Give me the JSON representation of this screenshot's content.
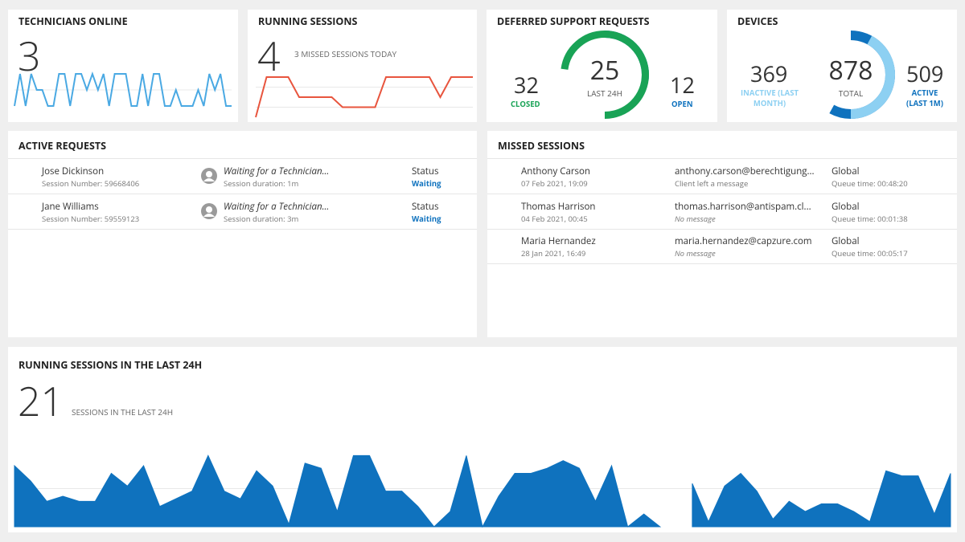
{
  "technicians_online": {
    "title": "TECHNICIANS ONLINE",
    "count": "3",
    "sparkline": {
      "color": "#4aa9e3",
      "ylim": [
        1,
        3
      ],
      "values": [
        1,
        3,
        1,
        3,
        2,
        2,
        1,
        1,
        3,
        3,
        1,
        3,
        3,
        2,
        3,
        2,
        3,
        1,
        3,
        3,
        3,
        1,
        1,
        3,
        1,
        3,
        3,
        1,
        1,
        2,
        1,
        1,
        1,
        2,
        1,
        3,
        2,
        3,
        1,
        1
      ]
    }
  },
  "running_sessions": {
    "title": "RUNNING SESSIONS",
    "count": "4",
    "note": "3 MISSED SESSIONS TODAY",
    "sparkline": {
      "color": "#e8553e",
      "ylim": [
        0,
        4
      ],
      "values": [
        0,
        4,
        4,
        4,
        2,
        2,
        2,
        2,
        1,
        1,
        1,
        1,
        4,
        4,
        4,
        4,
        4,
        2,
        4,
        4,
        4
      ]
    }
  },
  "deferred_requests": {
    "title": "DEFERRED SUPPORT REQUESTS",
    "closed": {
      "value": 32,
      "label": "CLOSED",
      "color": "#19a356"
    },
    "total": {
      "value": 25,
      "label": "LAST 24H"
    },
    "open": {
      "value": 12,
      "label": "OPEN",
      "color": "#0f72be"
    }
  },
  "devices": {
    "title": "DEVICES",
    "inactive": {
      "value": 369,
      "label": "INACTIVE (LAST MONTH)",
      "color": "#8dd0f2"
    },
    "total": {
      "value": 878,
      "label": "TOTAL"
    },
    "active": {
      "value": 509,
      "label": "ACTIVE (LAST 1M)",
      "color": "#0f72be"
    }
  },
  "active_requests": {
    "title": "ACTIVE REQUESTS",
    "rows": [
      {
        "name": "Jose Dickinson",
        "session": "Session Number: 59668406",
        "state": "Waiting for a Technician...",
        "duration": "Session duration: 1m",
        "status_label": "Status",
        "status": "Waiting"
      },
      {
        "name": "Jane Williams",
        "session": "Session Number: 59559123",
        "state": "Waiting for a Technician...",
        "duration": "Session duration: 3m",
        "status_label": "Status",
        "status": "Waiting"
      }
    ]
  },
  "missed_sessions": {
    "title": "MISSED SESSIONS",
    "rows": [
      {
        "name": "Anthony Carson",
        "date": "07 Feb 2021, 19:09",
        "email": "anthony.carson@berechtigung...",
        "message": "Client left a message",
        "group": "Global",
        "queue": "Queue time: 00:48:20"
      },
      {
        "name": "Thomas Harrison",
        "date": "04 Feb 2021, 00:45",
        "email": "thomas.harrison@antispam.cl...",
        "message": "No message",
        "group": "Global",
        "queue": "Queue time: 00:01:38"
      },
      {
        "name": "Maria Hernandez",
        "date": "28 Jan 2021, 16:49",
        "email": "maria.hernandez@capzure.com",
        "message": "No message",
        "group": "Global",
        "queue": "Queue time: 00:05:17"
      }
    ]
  },
  "running_24h": {
    "title": "RUNNING SESSIONS IN THE LAST 24H",
    "count": "21",
    "note": "SESSIONS IN THE LAST 24H",
    "chart": {
      "color": "#0f72be",
      "ylim": [
        0,
        3
      ],
      "values": [
        2.4,
        1.8,
        1,
        1.2,
        1,
        1,
        2.1,
        1.6,
        2.4,
        0.8,
        1.1,
        1.4,
        2.8,
        1.4,
        1.1,
        2.2,
        1.6,
        0.1,
        2.5,
        2.3,
        0.6,
        2.8,
        2.8,
        1.4,
        1.4,
        0.8,
        0,
        0.6,
        2.8,
        0,
        1.2,
        2.1,
        2.1,
        2.3,
        2.6,
        2.3,
        1,
        2.4,
        0,
        0.5,
        0,
        null,
        1.7,
        0.2,
        1.6,
        2.1,
        1.4,
        0.3,
        1,
        0.6,
        0.9,
        0.9,
        0.6,
        0.2,
        2.2,
        2,
        2,
        0.5,
        2.1
      ]
    }
  }
}
